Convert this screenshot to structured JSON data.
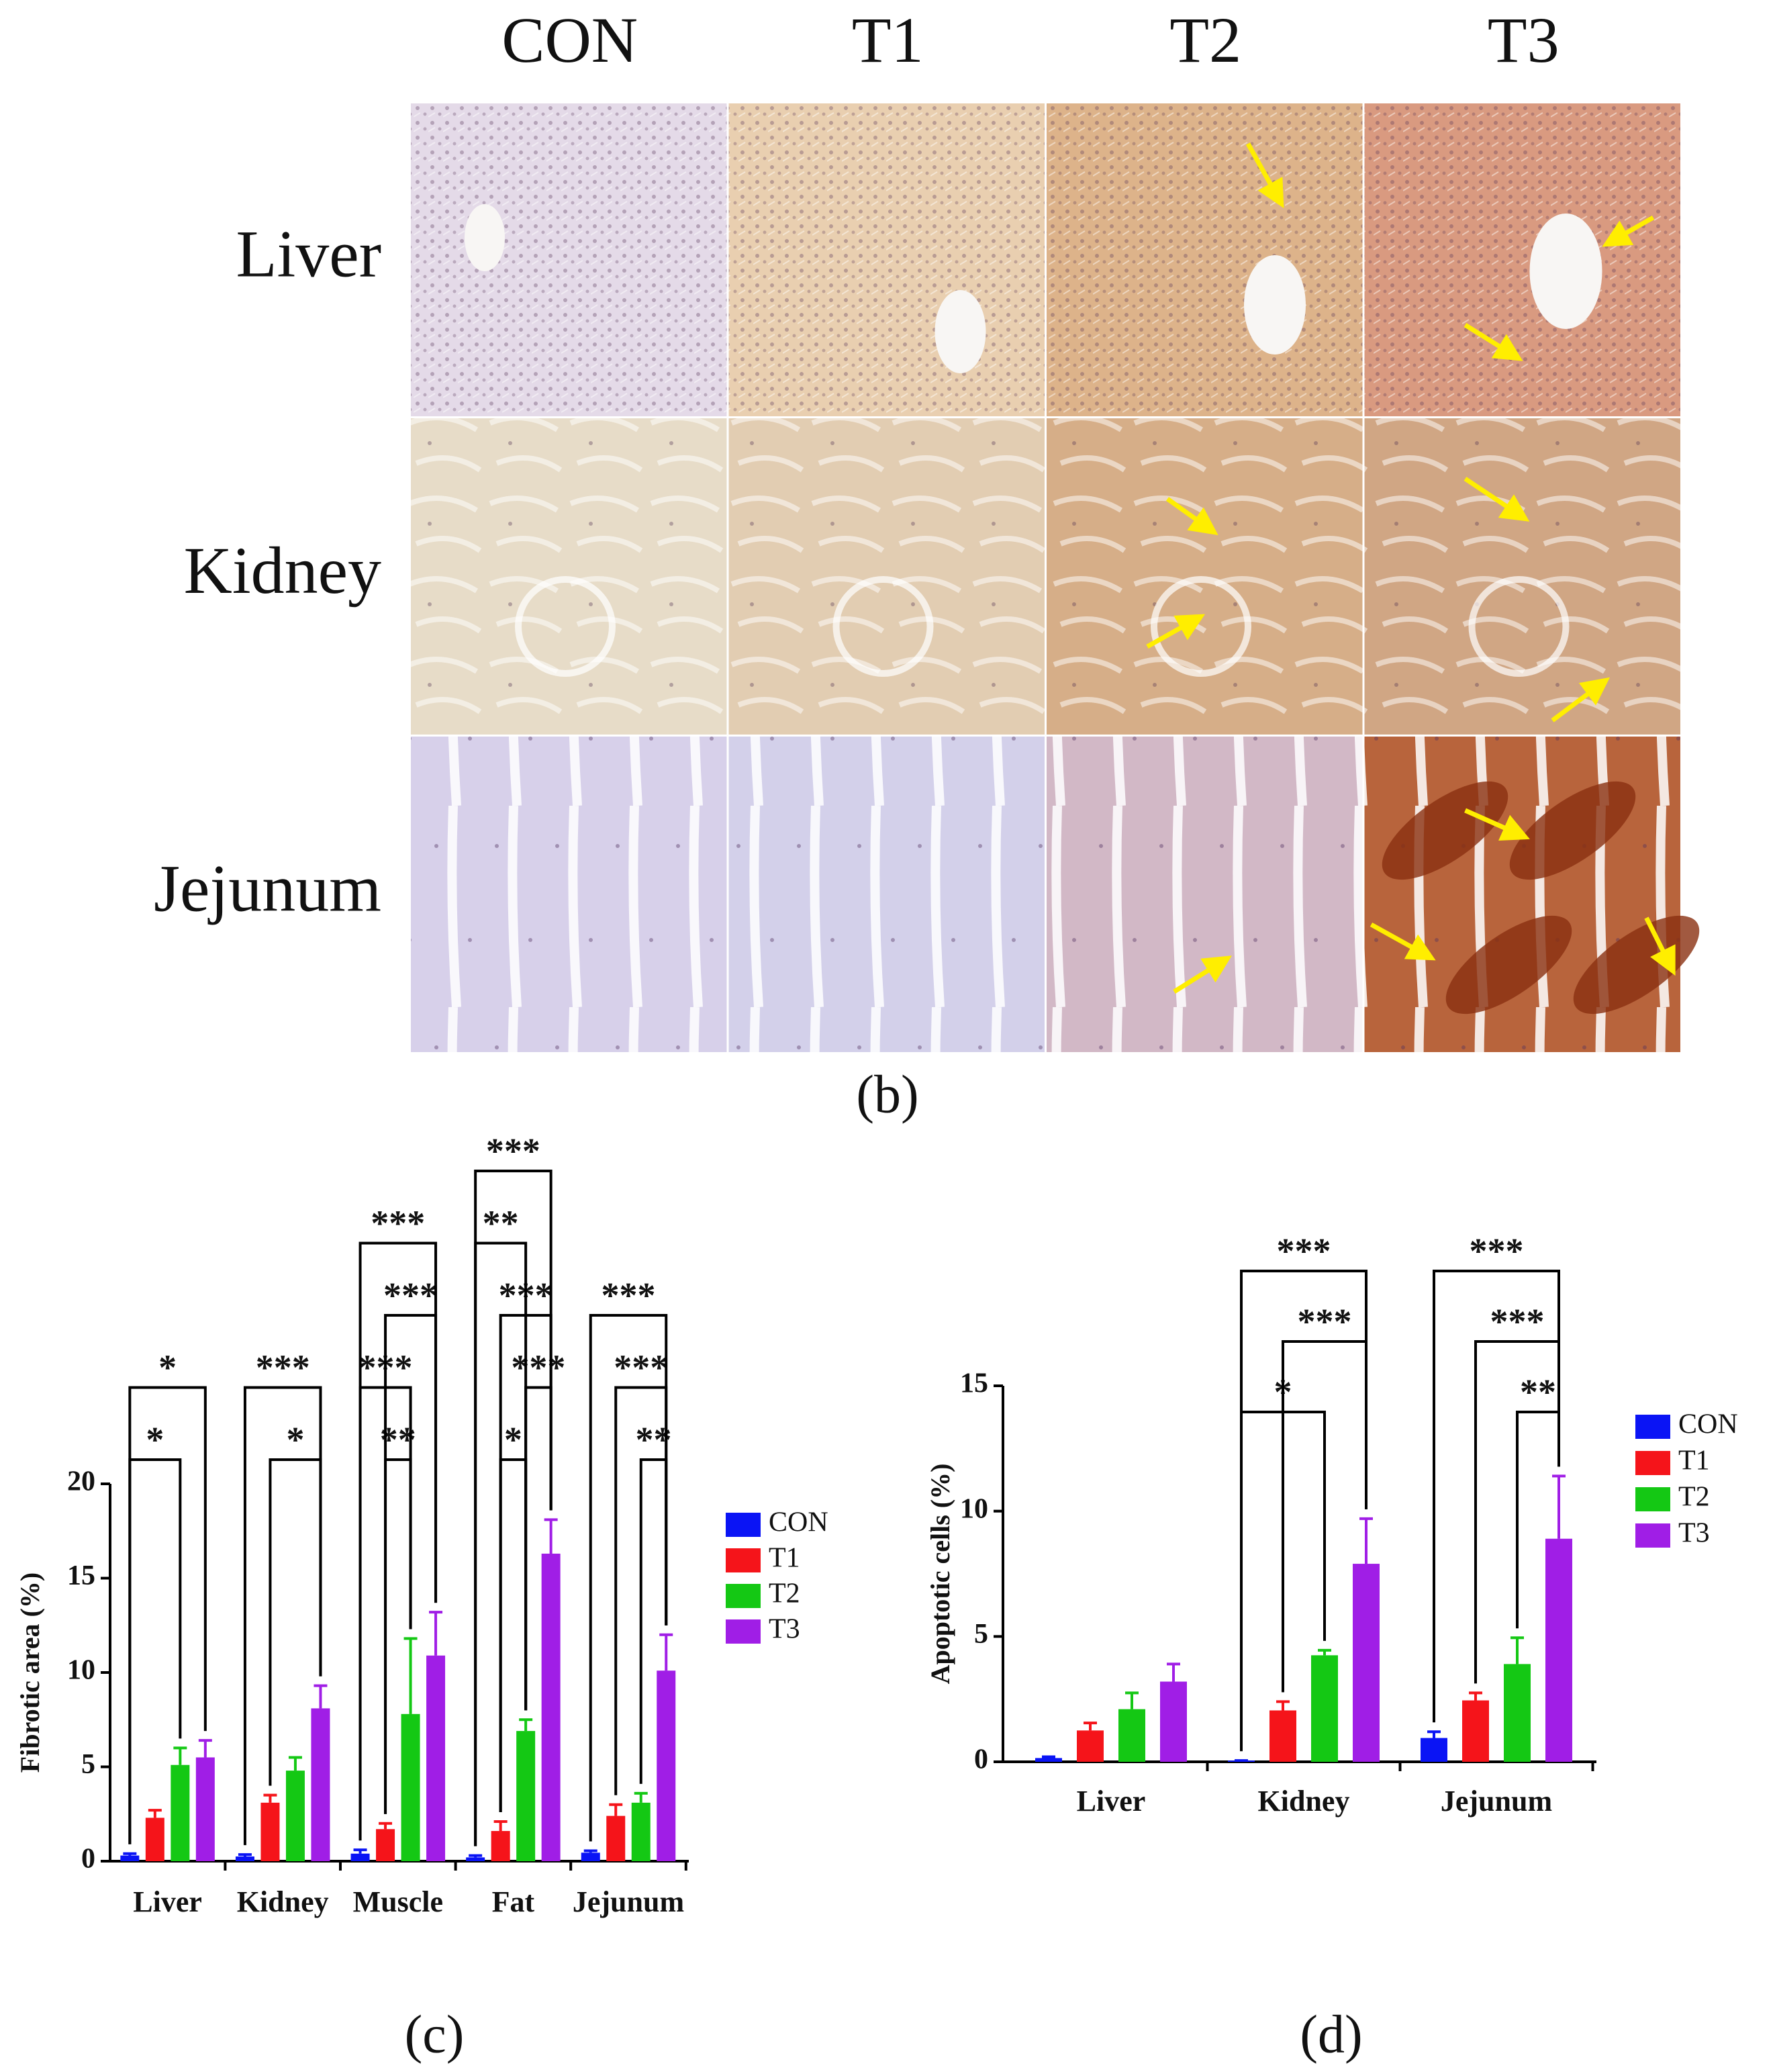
{
  "figure": {
    "columns": [
      "CON",
      "T1",
      "T2",
      "T3"
    ],
    "rows": [
      "Liver",
      "Kidney",
      "Jejunum"
    ],
    "panel_label": "(b)"
  },
  "chart_data": [
    {
      "type": "bar",
      "panel_label": "(c)",
      "y_label": "Fibrotic area (%)",
      "categories": [
        "Liver",
        "Kidney",
        "Muscle",
        "Fat",
        "Jejunum"
      ],
      "ylim": [
        0,
        20
      ],
      "yticks": [
        0,
        5,
        10,
        15,
        20
      ],
      "series": [
        {
          "name": "CON",
          "color": "#0a14f5",
          "values": [
            0.3,
            0.25,
            0.4,
            0.2,
            0.45
          ],
          "errors": [
            0.1,
            0.1,
            0.2,
            0.1,
            0.1
          ]
        },
        {
          "name": "T1",
          "color": "#f5141a",
          "values": [
            2.3,
            3.1,
            1.7,
            1.6,
            2.4
          ],
          "errors": [
            0.4,
            0.4,
            0.3,
            0.5,
            0.6
          ]
        },
        {
          "name": "T2",
          "color": "#14c814",
          "values": [
            5.1,
            4.8,
            7.8,
            6.9,
            3.1
          ],
          "errors": [
            0.9,
            0.7,
            4.0,
            0.6,
            0.5
          ]
        },
        {
          "name": "T3",
          "color": "#a01ee6",
          "values": [
            5.5,
            8.1,
            10.9,
            16.3,
            10.1
          ],
          "errors": [
            0.9,
            1.2,
            2.3,
            1.8,
            1.9
          ]
        }
      ],
      "annotations": [
        {
          "text": "*",
          "category": "Liver",
          "from": "CON",
          "to": "T2"
        },
        {
          "text": "*",
          "category": "Liver",
          "from": "CON",
          "to": "T3"
        },
        {
          "text": "*",
          "category": "Kidney",
          "from": "T1",
          "to": "T3"
        },
        {
          "text": "***",
          "category": "Kidney",
          "from": "CON",
          "to": "T3"
        },
        {
          "text": "**",
          "category": "Muscle",
          "from": "T1",
          "to": "T2"
        },
        {
          "text": "***",
          "category": "Muscle",
          "from": "CON",
          "to": "T2"
        },
        {
          "text": "***",
          "category": "Muscle",
          "from": "T1",
          "to": "T3"
        },
        {
          "text": "***",
          "category": "Muscle",
          "from": "CON",
          "to": "T3"
        },
        {
          "text": "*",
          "category": "Fat",
          "from": "T1",
          "to": "T2"
        },
        {
          "text": "***",
          "category": "Fat",
          "from": "T2",
          "to": "T3"
        },
        {
          "text": "***",
          "category": "Fat",
          "from": "T1",
          "to": "T3"
        },
        {
          "text": "**",
          "category": "Fat",
          "from": "CON",
          "to": "T2"
        },
        {
          "text": "***",
          "category": "Fat",
          "from": "CON",
          "to": "T3"
        },
        {
          "text": "**",
          "category": "Jejunum",
          "from": "T2",
          "to": "T3"
        },
        {
          "text": "***",
          "category": "Jejunum",
          "from": "T1",
          "to": "T3"
        },
        {
          "text": "***",
          "category": "Jejunum",
          "from": "CON",
          "to": "T3"
        }
      ]
    },
    {
      "type": "bar",
      "panel_label": "(d)",
      "y_label": "Apoptotic cells (%)",
      "categories": [
        "Liver",
        "Kidney",
        "Jejunum"
      ],
      "ylim": [
        0,
        15
      ],
      "yticks": [
        0,
        5,
        10,
        15
      ],
      "series": [
        {
          "name": "CON",
          "color": "#0a14f5",
          "values": [
            0.15,
            0.05,
            0.95
          ],
          "errors": [
            0.05,
            0,
            0.25
          ]
        },
        {
          "name": "T1",
          "color": "#f5141a",
          "values": [
            1.25,
            2.05,
            2.45
          ],
          "errors": [
            0.3,
            0.35,
            0.3
          ]
        },
        {
          "name": "T2",
          "color": "#14c814",
          "values": [
            2.1,
            4.25,
            3.9
          ],
          "errors": [
            0.65,
            0.2,
            1.05
          ]
        },
        {
          "name": "T3",
          "color": "#a01ee6",
          "values": [
            3.2,
            7.9,
            8.9
          ],
          "errors": [
            0.7,
            1.8,
            2.5
          ]
        }
      ],
      "annotations": [
        {
          "text": "*",
          "category": "Kidney",
          "from": "CON",
          "to": "T2"
        },
        {
          "text": "***",
          "category": "Kidney",
          "from": "T1",
          "to": "T3"
        },
        {
          "text": "***",
          "category": "Kidney",
          "from": "CON",
          "to": "T3"
        },
        {
          "text": "**",
          "category": "Jejunum",
          "from": "T2",
          "to": "T3"
        },
        {
          "text": "***",
          "category": "Jejunum",
          "from": "T1",
          "to": "T3"
        },
        {
          "text": "***",
          "category": "Jejunum",
          "from": "CON",
          "to": "T3"
        }
      ]
    }
  ]
}
